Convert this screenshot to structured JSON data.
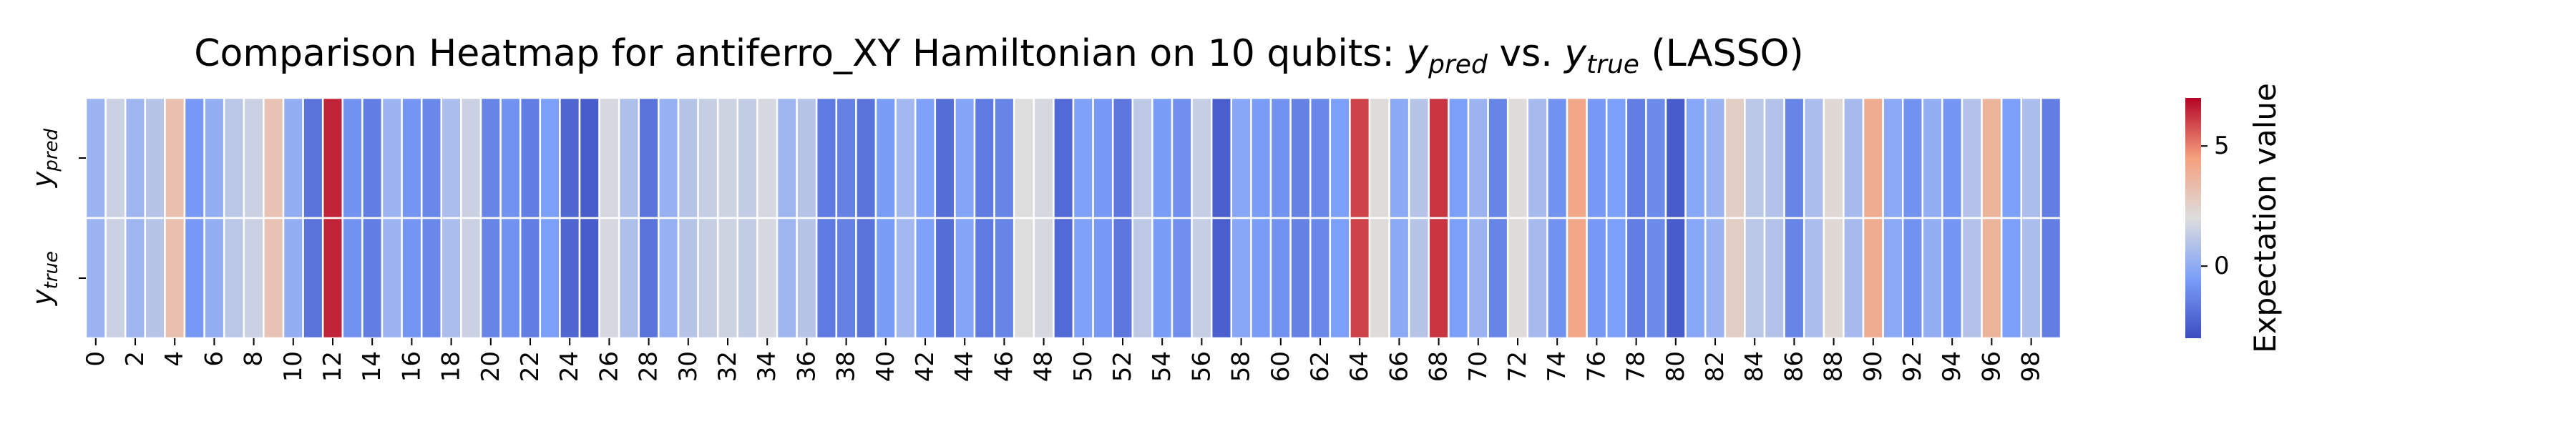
{
  "chart_data": {
    "type": "heatmap",
    "title_parts": {
      "prefix": "Comparison Heatmap for antiferro_XY Hamiltonian on 10 qubits: ",
      "y1": "y",
      "y1_sub": "pred",
      "mid": " vs. ",
      "y2": "y",
      "y2_sub": "true",
      "suffix": " (LASSO)"
    },
    "rows": [
      {
        "base": "y",
        "sub": "pred"
      },
      {
        "base": "y",
        "sub": "true"
      }
    ],
    "x_tick_labels": [
      "0",
      "2",
      "4",
      "6",
      "8",
      "10",
      "12",
      "14",
      "16",
      "18",
      "20",
      "22",
      "24",
      "26",
      "28",
      "30",
      "32",
      "34",
      "36",
      "38",
      "40",
      "42",
      "44",
      "46",
      "48",
      "50",
      "52",
      "54",
      "56",
      "58",
      "60",
      "62",
      "64",
      "66",
      "68",
      "70",
      "72",
      "74",
      "76",
      "78",
      "80",
      "82",
      "84",
      "86",
      "88",
      "90",
      "92",
      "94",
      "96",
      "98"
    ],
    "colorbar": {
      "label": "Expectation value",
      "ticks": [
        "0",
        "5"
      ],
      "range": [
        -3,
        7
      ],
      "colormap": "coolwarm"
    },
    "values": [
      0.3,
      1.5,
      0.4,
      1.0,
      3.2,
      -0.7,
      0.1,
      1.1,
      1.5,
      3.1,
      0.1,
      -1.8,
      6.5,
      -0.9,
      -1.5,
      0.3,
      -0.8,
      -1.2,
      0.7,
      1.5,
      -1.3,
      -0.9,
      -1.5,
      -0.5,
      -2.2,
      -2.5,
      1.8,
      0.8,
      -1.8,
      0.2,
      1.0,
      1.4,
      1.6,
      1.3,
      1.8,
      0.4,
      1.0,
      -1.6,
      -1.4,
      -1.8,
      -0.6,
      0.5,
      -0.4,
      -2.0,
      -0.3,
      -1.6,
      -1.3,
      2.0,
      1.8,
      -2.1,
      -0.4,
      -0.7,
      -1.7,
      1.2,
      -0.6,
      -1.0,
      1.4,
      -2.4,
      -0.2,
      -0.6,
      -0.9,
      -1.4,
      -1.2,
      -0.5,
      6.0,
      2.1,
      -0.1,
      1.0,
      6.2,
      -0.5,
      0.3,
      -1.3,
      2.1,
      0.6,
      -0.9,
      4.2,
      -0.7,
      -0.5,
      -1.5,
      -1.1,
      -2.5,
      -0.2,
      0.3,
      2.6,
      1.1,
      0.9,
      -1.3,
      0.7,
      2.2,
      0.6,
      4.0,
      -0.1,
      -0.9,
      0.1,
      -0.8,
      0.9,
      3.7,
      -0.5,
      0.7,
      -1.5
    ]
  }
}
